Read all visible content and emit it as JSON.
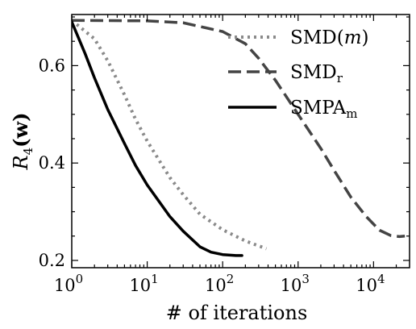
{
  "chart_data": {
    "type": "line",
    "xlabel": "# of iterations",
    "ylabel_main": "R",
    "ylabel_sub": "4",
    "ylabel_arg": "(w)",
    "xscale": "log",
    "xlim": [
      1,
      30000
    ],
    "ylim": [
      0.185,
      0.705
    ],
    "x_ticks": [
      {
        "value": 1,
        "mantissa": "10",
        "exp": "0"
      },
      {
        "value": 10,
        "mantissa": "10",
        "exp": "1"
      },
      {
        "value": 100,
        "mantissa": "10",
        "exp": "2"
      },
      {
        "value": 1000,
        "mantissa": "10",
        "exp": "3"
      },
      {
        "value": 10000,
        "mantissa": "10",
        "exp": "4"
      }
    ],
    "y_ticks": [
      {
        "value": 0.2,
        "label": "0.2"
      },
      {
        "value": 0.4,
        "label": "0.4"
      },
      {
        "value": 0.6,
        "label": "0.6"
      }
    ],
    "grid": false,
    "legend_position": "top-right",
    "series": [
      {
        "name": "SMD(m)",
        "name_main": "SMD(",
        "name_italic": "m",
        "name_close": ")",
        "style": "dotted",
        "color": "#8a8a8a",
        "points": [
          [
            1,
            0.693
          ],
          [
            2,
            0.655
          ],
          [
            3,
            0.61
          ],
          [
            5,
            0.54
          ],
          [
            7,
            0.49
          ],
          [
            10,
            0.445
          ],
          [
            20,
            0.37
          ],
          [
            30,
            0.335
          ],
          [
            50,
            0.295
          ],
          [
            100,
            0.263
          ],
          [
            200,
            0.24
          ],
          [
            380,
            0.224
          ]
        ]
      },
      {
        "name": "SMDr",
        "name_main": "SMD",
        "name_sub": "r",
        "style": "dashed",
        "color": "#444444",
        "points": [
          [
            1,
            0.693
          ],
          [
            10,
            0.692
          ],
          [
            30,
            0.688
          ],
          [
            100,
            0.67
          ],
          [
            200,
            0.645
          ],
          [
            300,
            0.615
          ],
          [
            500,
            0.57
          ],
          [
            1000,
            0.5
          ],
          [
            2000,
            0.43
          ],
          [
            3000,
            0.385
          ],
          [
            5000,
            0.33
          ],
          [
            8000,
            0.29
          ],
          [
            12000,
            0.262
          ],
          [
            17000,
            0.251
          ],
          [
            22000,
            0.249
          ],
          [
            26000,
            0.25
          ]
        ]
      },
      {
        "name": "SMPAm",
        "name_main": "SMPA",
        "name_sub": "m",
        "style": "solid",
        "color": "#000000",
        "points": [
          [
            1,
            0.69
          ],
          [
            1.5,
            0.625
          ],
          [
            2,
            0.575
          ],
          [
            3,
            0.51
          ],
          [
            5,
            0.44
          ],
          [
            7,
            0.395
          ],
          [
            10,
            0.355
          ],
          [
            20,
            0.29
          ],
          [
            30,
            0.26
          ],
          [
            50,
            0.228
          ],
          [
            70,
            0.217
          ],
          [
            100,
            0.212
          ],
          [
            150,
            0.21
          ],
          [
            180,
            0.21
          ]
        ]
      }
    ]
  }
}
